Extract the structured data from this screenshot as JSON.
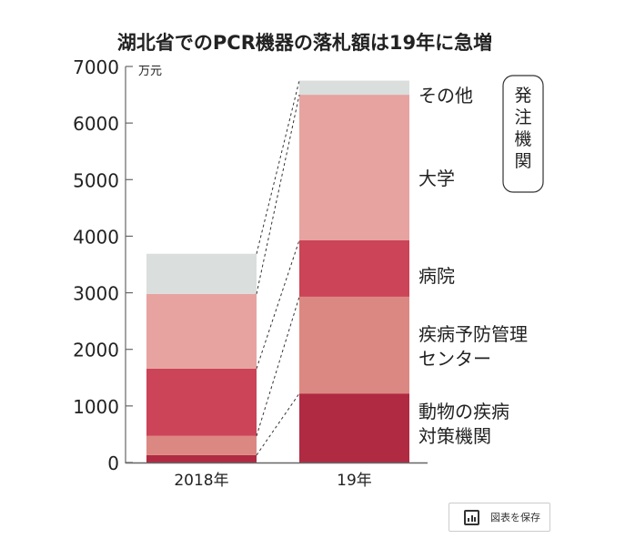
{
  "chart_data": {
    "type": "bar",
    "stacked": true,
    "title": "湖北省でのPCR機器の落札額は19年に急増",
    "ylabel": "万元",
    "ylim": [
      0,
      7000
    ],
    "yticks": [
      0,
      1000,
      2000,
      3000,
      4000,
      5000,
      6000,
      7000
    ],
    "categories": [
      "2018年",
      "19年"
    ],
    "legend_title": "発注機関",
    "series": [
      {
        "name": "動物の疾病対策機関",
        "label_lines": [
          "動物の疾病",
          "対策機関"
        ],
        "color": "#b02a42",
        "values": [
          130,
          1220
        ]
      },
      {
        "name": "疾病予防管理センター",
        "label_lines": [
          "疾病予防管理",
          "センター"
        ],
        "color": "#dc8882",
        "values": [
          340,
          1710
        ]
      },
      {
        "name": "病院",
        "label_lines": [
          "病院"
        ],
        "color": "#cc4457",
        "values": [
          1190,
          1000
        ]
      },
      {
        "name": "大学",
        "label_lines": [
          "大学"
        ],
        "color": "#e6a3a0",
        "values": [
          1320,
          2570
        ]
      },
      {
        "name": "その他",
        "label_lines": [
          "その他"
        ],
        "color": "#dadedd",
        "values": [
          710,
          250
        ]
      }
    ]
  },
  "toolbar": {
    "save_label": "図表を保存",
    "save_icon": "bar-chart-icon"
  }
}
